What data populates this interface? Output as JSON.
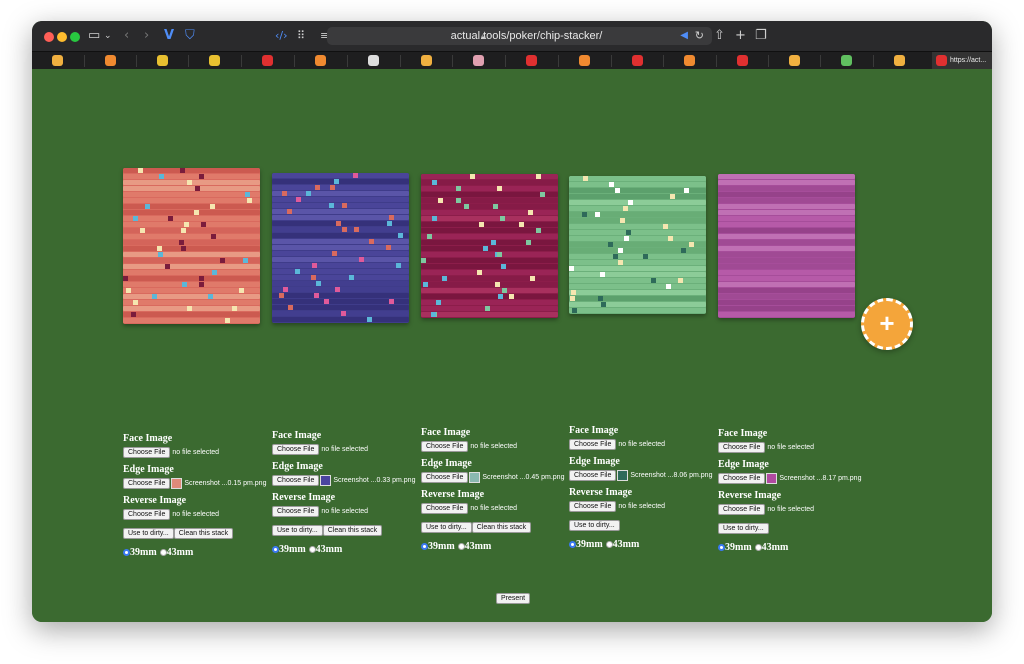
{
  "browser": {
    "url": "actual.tools/poker/chip-stacker/",
    "active_tab_title": "https://act..."
  },
  "favorites": [
    {
      "color": "#f0b040"
    },
    {
      "color": "#f08a30"
    },
    {
      "color": "#e8c030"
    },
    {
      "color": "#e8c030"
    },
    {
      "color": "#e03030"
    },
    {
      "color": "#f08a30"
    },
    {
      "color": "#dddddd"
    },
    {
      "color": "#f0b040"
    },
    {
      "color": "#e0a0b0"
    },
    {
      "color": "#e03030"
    },
    {
      "color": "#f08a30"
    },
    {
      "color": "#e03030"
    },
    {
      "color": "#f08a30"
    },
    {
      "color": "#e03030"
    },
    {
      "color": "#f0b040"
    },
    {
      "color": "#60c060"
    },
    {
      "color": "#f0b040"
    }
  ],
  "stacks": [
    {
      "base": "#d96a5e",
      "shades": [
        "#e07a6a",
        "#cc5a50",
        "#e89a84",
        "#d4645a"
      ],
      "marks": [
        "#f5e6b0",
        "#7a1c3c",
        "#5bb7d9"
      ],
      "rows": 26
    },
    {
      "base": "#3f3c8a",
      "shades": [
        "#4a4599",
        "#35317a",
        "#5a55a8",
        "#423e8f"
      ],
      "marks": [
        "#e05a9a",
        "#5bb7d9",
        "#d96a5e"
      ],
      "rows": 25
    },
    {
      "base": "#8c1d4a",
      "shades": [
        "#9a2456",
        "#7a163f",
        "#a8305e",
        "#861b47"
      ],
      "marks": [
        "#5bb7d9",
        "#7ec8a0",
        "#f5e6b0"
      ],
      "rows": 24
    },
    {
      "base": "#6bb07a",
      "shades": [
        "#7cc08a",
        "#5ca06c",
        "#8ccc98",
        "#68ad76"
      ],
      "marks": [
        "#f5e6b0",
        "#2e6a5a",
        "#ffffff"
      ],
      "rows": 23
    },
    {
      "base": "#a64d9a",
      "shades": [
        "#b65aa8",
        "#96428a",
        "#c070b4",
        "#a04a94"
      ],
      "marks": [],
      "rows": 24
    }
  ],
  "panels": [
    {
      "face_label": "Face Image",
      "face_btn": "Choose File",
      "face_file": "no file selected",
      "edge_label": "Edge Image",
      "edge_btn": "Choose File",
      "edge_file": "Screenshot ...0.15 pm.png",
      "edge_color": "#e08a7a",
      "reverse_label": "Reverse Image",
      "reverse_btn": "Choose File",
      "reverse_file": "no file selected",
      "dirty_btn": "Use to dirty...",
      "clean_btn": "Clean this stack",
      "size_a": "39mm",
      "size_b": "43mm"
    },
    {
      "face_label": "Face Image",
      "face_btn": "Choose File",
      "face_file": "no file selected",
      "edge_label": "Edge Image",
      "edge_btn": "Choose File",
      "edge_file": "Screenshot ...0.33 pm.png",
      "edge_color": "#4a44a0",
      "reverse_label": "Reverse Image",
      "reverse_btn": "Choose File",
      "reverse_file": "no file selected",
      "dirty_btn": "Use to dirty...",
      "clean_btn": "Clean this stack",
      "size_a": "39mm",
      "size_b": "43mm"
    },
    {
      "face_label": "Face Image",
      "face_btn": "Choose File",
      "face_file": "no file selected",
      "edge_label": "Edge Image",
      "edge_btn": "Choose File",
      "edge_file": "Screenshot ...0.45 pm.png",
      "edge_color": "#8ab8b0",
      "reverse_label": "Reverse Image",
      "reverse_btn": "Choose File",
      "reverse_file": "no file selected",
      "dirty_btn": "Use to dirty...",
      "clean_btn": "Clean this stack",
      "size_a": "39mm",
      "size_b": "43mm"
    },
    {
      "face_label": "Face Image",
      "face_btn": "Choose File",
      "face_file": "no file selected",
      "edge_label": "Edge Image",
      "edge_btn": "Choose File",
      "edge_file": "Screenshot ...8.06 pm.png",
      "edge_color": "#2e6a5a",
      "reverse_label": "Reverse Image",
      "reverse_btn": "Choose File",
      "reverse_file": "no file selected",
      "dirty_btn": "Use to dirty...",
      "clean_btn": "",
      "size_a": "39mm",
      "size_b": "43mm"
    },
    {
      "face_label": "Face Image",
      "face_btn": "Choose File",
      "face_file": "no file selected",
      "edge_label": "Edge Image",
      "edge_btn": "Choose File",
      "edge_file": "Screenshot ...8.17 pm.png",
      "edge_color": "#b04aa0",
      "reverse_label": "Reverse Image",
      "reverse_btn": "Choose File",
      "reverse_file": "no file selected",
      "dirty_btn": "Use to dirty...",
      "clean_btn": "",
      "size_a": "39mm",
      "size_b": "43mm"
    }
  ],
  "add_button_label": "+",
  "present_label": "Present"
}
